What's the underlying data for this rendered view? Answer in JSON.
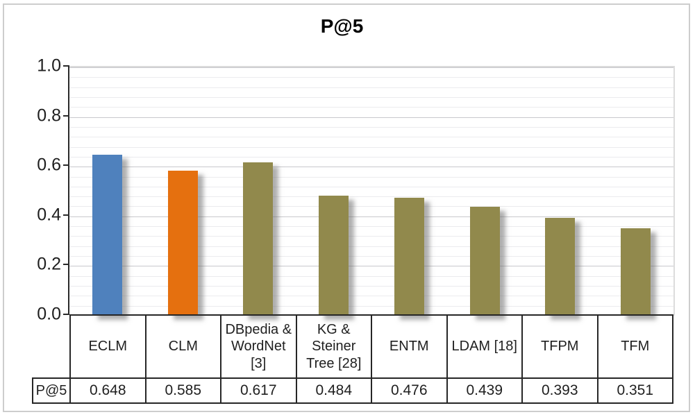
{
  "figure": {
    "title": "P@5"
  },
  "chart_data": {
    "type": "bar",
    "title": "P@5",
    "categories": [
      "ECLM",
      "CLM",
      "DBpedia & WordNet [3]",
      "KG & Steiner Tree [28]",
      "ENTM",
      "LDAM [18]",
      "TFPM",
      "TFM"
    ],
    "values": [
      0.648,
      0.585,
      0.617,
      0.484,
      0.476,
      0.439,
      0.393,
      0.351
    ],
    "series": [
      {
        "name": "P@5",
        "values": [
          0.648,
          0.585,
          0.617,
          0.484,
          0.476,
          0.439,
          0.393,
          0.351
        ]
      }
    ],
    "xlabel": "",
    "ylabel": "",
    "ylim": [
      0.0,
      1.0
    ],
    "yticks": [
      "1.0",
      "0.8",
      "0.6",
      "0.4",
      "0.2",
      "0.0"
    ],
    "ytick_values": [
      1.0,
      0.8,
      0.6,
      0.4,
      0.2,
      0.0
    ],
    "minor_grid_step": 0.04,
    "grid": "major and minor horizontal gridlines",
    "legend_position": "none",
    "bar_colors": [
      "#4F81BD",
      "#E5700F",
      "#91894C",
      "#91894C",
      "#91894C",
      "#91894C",
      "#91894C",
      "#91894C"
    ],
    "data_table": {
      "row_header": "P@5",
      "row_values": [
        "0.648",
        "0.585",
        "0.617",
        "0.484",
        "0.476",
        "0.439",
        "0.393",
        "0.351"
      ]
    }
  }
}
